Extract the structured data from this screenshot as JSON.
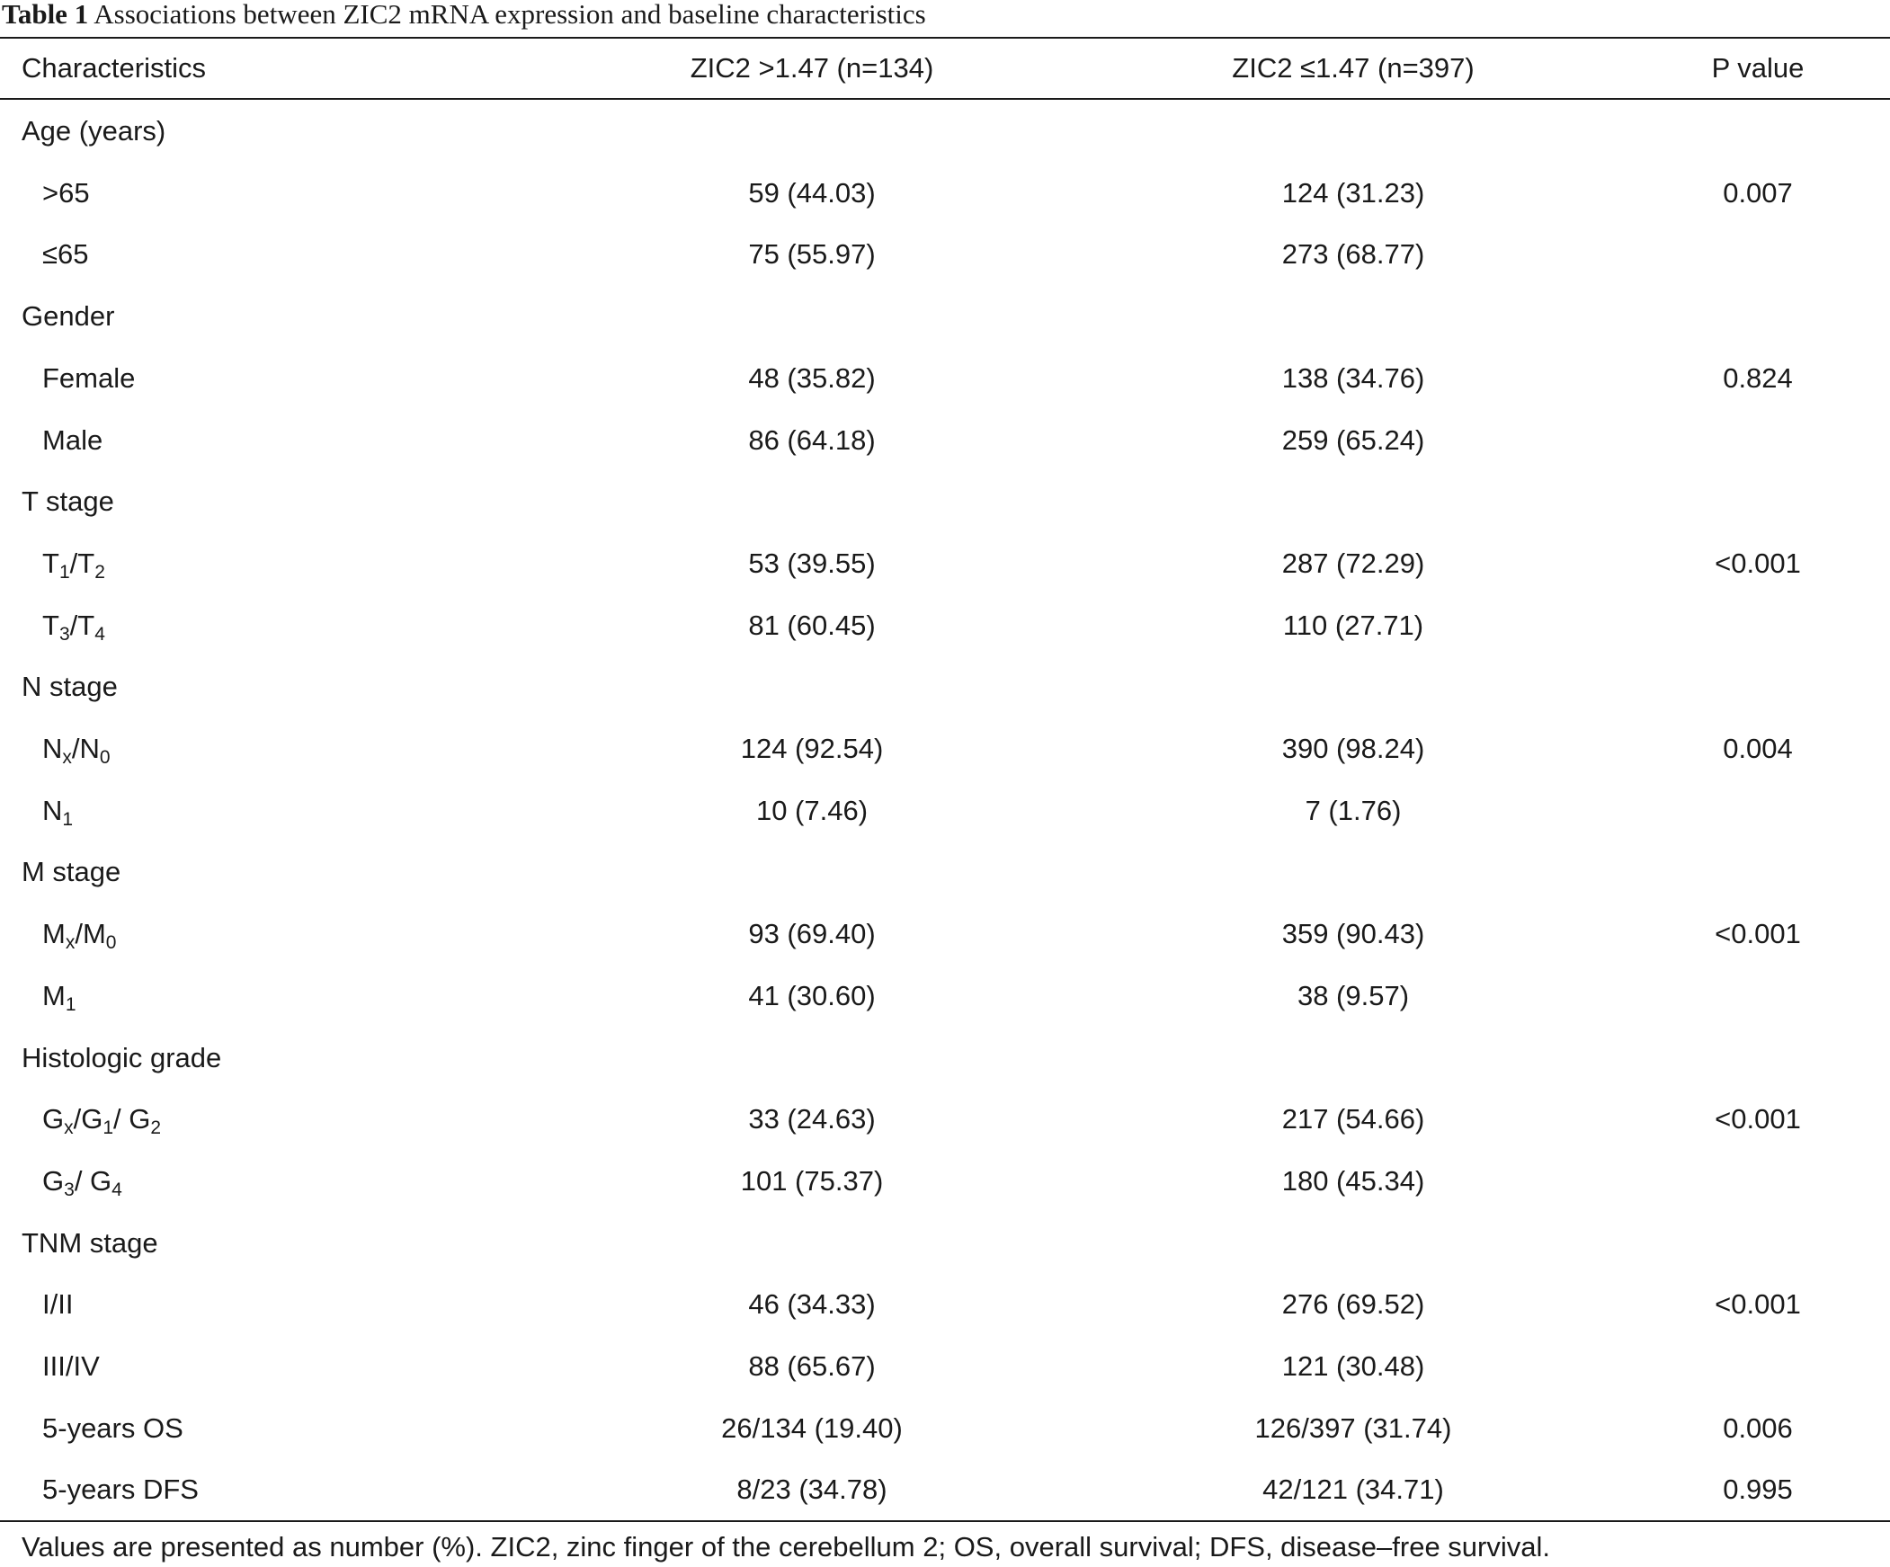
{
  "caption": {
    "label": "Table 1",
    "text": "Associations between ZIC2 mRNA expression and baseline characteristics"
  },
  "header": {
    "col0": "Characteristics",
    "col1": "ZIC2 >1.47 (n=134)",
    "col2": "ZIC2 ≤1.47 (n=397)",
    "col3": "P value"
  },
  "rows": [
    {
      "label": "Age (years)",
      "high": "",
      "low": "",
      "p": ""
    },
    {
      "label": ">65",
      "high": "59 (44.03)",
      "low": "124 (31.23)",
      "p": "0.007"
    },
    {
      "label": "≤65",
      "high": "75 (55.97)",
      "low": "273 (68.77)",
      "p": ""
    },
    {
      "label": "Gender",
      "high": "",
      "low": "",
      "p": ""
    },
    {
      "label": "Female",
      "high": "48 (35.82)",
      "low": "138 (34.76)",
      "p": "0.824"
    },
    {
      "label": "Male",
      "high": "86 (64.18)",
      "low": "259 (65.24)",
      "p": ""
    },
    {
      "label": "T stage",
      "high": "",
      "low": "",
      "p": ""
    },
    {
      "label": "T1/T2",
      "high": "53 (39.55)",
      "low": "287 (72.29)",
      "p": "<0.001"
    },
    {
      "label": "T3/T4",
      "high": "81 (60.45)",
      "low": "110 (27.71)",
      "p": ""
    },
    {
      "label": "N stage",
      "high": "",
      "low": "",
      "p": ""
    },
    {
      "label": "Nx/N0",
      "high": "124 (92.54)",
      "low": "390 (98.24)",
      "p": "0.004"
    },
    {
      "label": "N1",
      "high": "10 (7.46)",
      "low": "7 (1.76)",
      "p": ""
    },
    {
      "label": "M stage",
      "high": "",
      "low": "",
      "p": ""
    },
    {
      "label": "Mx/M0",
      "high": "93 (69.40)",
      "low": "359 (90.43)",
      "p": "<0.001"
    },
    {
      "label": "M1",
      "high": "41 (30.60)",
      "low": "38 (9.57)",
      "p": ""
    },
    {
      "label": "Histologic grade",
      "high": "",
      "low": "",
      "p": ""
    },
    {
      "label": "Gx/G1/ G2",
      "high": "33 (24.63)",
      "low": "217 (54.66)",
      "p": "<0.001"
    },
    {
      "label": "G3/ G4",
      "high": "101 (75.37)",
      "low": "180 (45.34)",
      "p": ""
    },
    {
      "label": "TNM stage",
      "high": "",
      "low": "",
      "p": ""
    },
    {
      "label": "I/II",
      "high": "46 (34.33)",
      "low": "276 (69.52)",
      "p": "<0.001"
    },
    {
      "label": "III/IV",
      "high": "88 (65.67)",
      "low": "121 (30.48)",
      "p": ""
    },
    {
      "label": "5-years OS",
      "high": "26/134 (19.40)",
      "low": "126/397 (31.74)",
      "p": "0.006"
    },
    {
      "label": "5-years DFS",
      "high": "8/23 (34.78)",
      "low": "42/121 (34.71)",
      "p": "0.995"
    }
  ],
  "footnote": "Values are presented as number (%). ZIC2, zinc finger of the cerebellum 2; OS, overall survival; DFS, disease–free survival."
}
